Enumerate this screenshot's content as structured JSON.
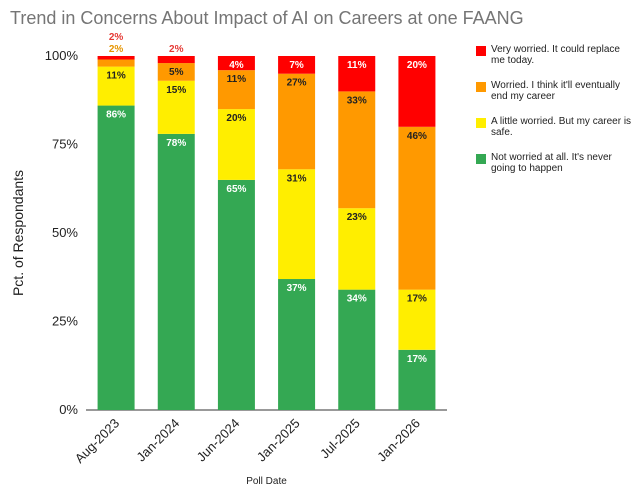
{
  "chart_data": {
    "type": "bar",
    "stacked": true,
    "title": "Trend in Concerns About Impact of AI on Careers at one FAANG",
    "xlabel": "Poll Date",
    "ylabel": "Pct. of Respondants",
    "ylim": [
      0,
      100
    ],
    "y_ticks": [
      "0%",
      "25%",
      "50%",
      "75%",
      "100%"
    ],
    "y_tick_values": [
      0,
      25,
      50,
      75,
      100
    ],
    "categories": [
      "Aug-2023",
      "Jan-2024",
      "Jun-2024",
      "Jan-2025",
      "Jul-2025",
      "Jan-2026"
    ],
    "series": [
      {
        "name": "Not worried at all. It's never going to happen",
        "color": "#34a853",
        "values": [
          86,
          78,
          65,
          37,
          34,
          17
        ],
        "labels": [
          "86%",
          "78%",
          "65%",
          "37%",
          "34%",
          "17%"
        ]
      },
      {
        "name": "A little worried. But my career is safe.",
        "color": "#ffee00",
        "values": [
          11,
          15,
          20,
          31,
          23,
          17
        ],
        "labels": [
          "11%",
          "15%",
          "20%",
          "31%",
          "23%",
          "17%"
        ]
      },
      {
        "name": "Worried. I think it'll eventually end my career",
        "color": "#ff9900",
        "values": [
          2,
          5,
          11,
          27,
          33,
          46
        ],
        "labels": [
          "2%",
          "5%",
          "11%",
          "27%",
          "33%",
          "46%"
        ]
      },
      {
        "name": "Very worried. It could replace me today.",
        "color": "#ff0000",
        "values": [
          2,
          2,
          4,
          7,
          11,
          20
        ],
        "labels": [
          "2%",
          "2%",
          "4%",
          "7%",
          "11%",
          "20%"
        ]
      }
    ],
    "legend_position": "right",
    "grid": false
  }
}
